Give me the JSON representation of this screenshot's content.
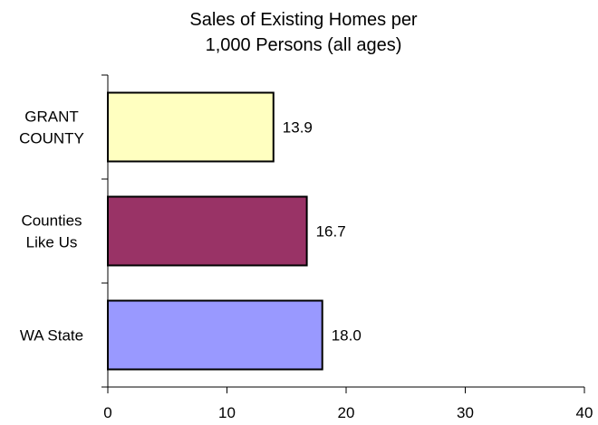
{
  "chart_data": {
    "type": "bar",
    "orientation": "horizontal",
    "title_lines": [
      "Sales of Existing Homes per",
      "1,000 Persons (all ages)"
    ],
    "categories": [
      {
        "lines": [
          "GRANT",
          "COUNTY"
        ]
      },
      {
        "lines": [
          "Counties",
          "Like Us"
        ]
      },
      {
        "lines": [
          "WA State"
        ]
      }
    ],
    "values": [
      13.9,
      16.7,
      18.0
    ],
    "value_labels": [
      "13.9",
      "16.7",
      "18.0"
    ],
    "colors": [
      "#ffffc0",
      "#993366",
      "#9999ff"
    ],
    "xlim": [
      0,
      40
    ],
    "xticks": [
      0,
      10,
      20,
      30,
      40
    ],
    "xtick_labels": [
      "0",
      "10",
      "20",
      "30",
      "40"
    ],
    "grid": false
  }
}
